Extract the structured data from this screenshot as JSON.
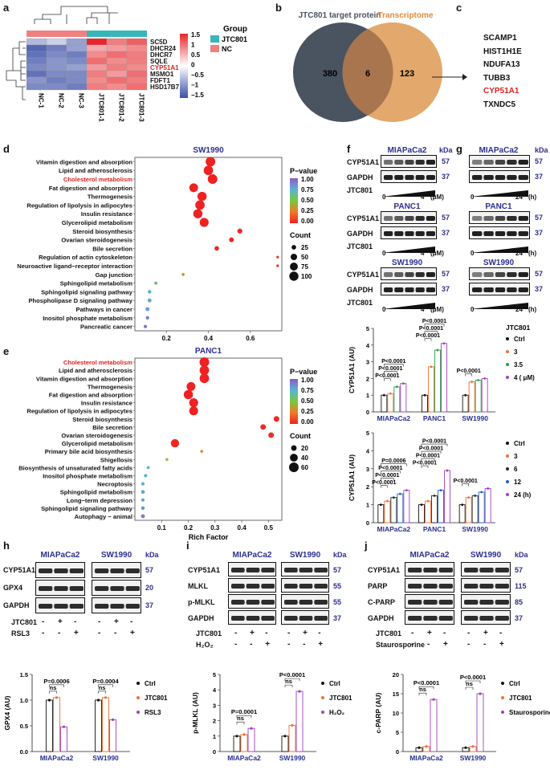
{
  "panels": {
    "a": "a",
    "b": "b",
    "c": "c",
    "d": "d",
    "e": "e",
    "f": "f",
    "g": "g",
    "h": "h",
    "i": "i",
    "j": "j"
  },
  "heatmap": {
    "genes": [
      "SC5D",
      "DHCR24",
      "DHCR7",
      "SQLE",
      "CYP51A1",
      "MSMO1",
      "FDFT1",
      "HSD17B7"
    ],
    "highlight_gene": "CYP51A1",
    "samples": [
      "NC-1",
      "NC-2",
      "NC-3",
      "JTC801-1",
      "JTC801-2",
      "JTC801-3"
    ],
    "scale_ticks": [
      "1.5",
      "1",
      "0.5",
      "0",
      "−0.5",
      "−1",
      "−1.5"
    ],
    "group_title": "Group",
    "group_items": [
      {
        "label": "JTC801",
        "color": "#3ab5b8"
      },
      {
        "label": "NC",
        "color": "#f08080"
      }
    ],
    "values": [
      [
        -0.6,
        -0.4,
        -0.8,
        1.5,
        0.9,
        1.1
      ],
      [
        -1.3,
        -1.1,
        -0.8,
        0.6,
        0.7,
        0.8
      ],
      [
        -1.2,
        -1.0,
        -1.1,
        0.8,
        1.0,
        0.9
      ],
      [
        -1.1,
        -0.9,
        -1.0,
        1.0,
        0.8,
        0.9
      ],
      [
        -1.0,
        -0.9,
        -0.8,
        0.7,
        0.9,
        0.8
      ],
      [
        -1.2,
        -1.0,
        -1.0,
        0.9,
        0.7,
        1.0
      ],
      [
        -0.9,
        -1.1,
        -1.0,
        0.8,
        1.0,
        0.9
      ],
      [
        -1.0,
        -1.0,
        -1.1,
        0.9,
        0.8,
        1.0
      ]
    ]
  },
  "venn": {
    "left_label": "JTC801 target protein",
    "right_label": "Transcriptome",
    "left_only": "380",
    "overlap": "6",
    "right_only": "123"
  },
  "gene_list": {
    "genes": [
      "SCAMP1",
      "HIST1H1E",
      "NDUFA13",
      "TUBB3",
      "CYP51A1",
      "TXNDC5"
    ],
    "highlight": "CYP51A1"
  },
  "chart_data": [
    {
      "type": "scatter",
      "panel": "d",
      "title": "SW1990",
      "xlabel": "",
      "ticks": [
        "0.2",
        "0.4",
        "0.6"
      ],
      "xlim": [
        0.05,
        0.75
      ],
      "categories": [
        "Vitamin digestion and absorption",
        "Lipid and atherosclerosis",
        "Cholesterol metabolism",
        "Fat digestion and absorption",
        "Thermogenesis",
        "Regulation of lipolysis in adipocytes",
        "Insulin resistance",
        "Glycerolipid metabolism",
        "Steroid biosynthesis",
        "Ovarian steroidogenesis",
        "Bile secretion",
        "Regulation of actin cytoskeleton",
        "Neuroactive ligand−receptor interaction",
        "Gap junction",
        "Sphingolipid metabolism",
        "Sphingolipid signaling pathway",
        "Phospholipase D signaling pathway",
        "Pathways in cancer",
        "Inositol phosphate metabolism",
        "Pancreatic cancer"
      ],
      "highlight": "Cholesterol metabolism",
      "x": [
        0.41,
        0.4,
        0.42,
        0.33,
        0.37,
        0.36,
        0.35,
        0.38,
        0.55,
        0.51,
        0.44,
        0.73,
        0.73,
        0.28,
        0.15,
        0.12,
        0.12,
        0.11,
        0.11,
        0.1
      ],
      "count": [
        110,
        105,
        110,
        90,
        100,
        105,
        100,
        95,
        30,
        28,
        25,
        8,
        8,
        10,
        12,
        15,
        18,
        20,
        14,
        12
      ],
      "pvalue": [
        0.0,
        0.0,
        0.0,
        0.0,
        0.0,
        0.0,
        0.0,
        0.0,
        0.02,
        0.02,
        0.02,
        0.05,
        0.05,
        0.3,
        0.6,
        0.75,
        0.8,
        0.8,
        0.9,
        0.95
      ],
      "legend_pvalue_title": "P−value",
      "legend_pvalue_ticks": [
        "1.00",
        "0.75",
        "0.50",
        "0.25",
        "0.00"
      ],
      "legend_count_title": "Count",
      "legend_count_ticks": [
        "25",
        "50",
        "75",
        "100"
      ]
    },
    {
      "type": "scatter",
      "panel": "e",
      "title": "PANC1",
      "xlabel": "Rich Factor",
      "ticks": [
        "0.1",
        "0.2",
        "0.3",
        "0.4",
        "0.5"
      ],
      "xlim": [
        0.0,
        0.55
      ],
      "categories": [
        "Cholesterol metabolism",
        "Lipid and atherosclerosis",
        "Vitamin digestion and absorption",
        "Thermogenesis",
        "Fat digestion and absorption",
        "Insulin resistance",
        "Regulation of lipolysis in adipocytes",
        "Steroid biosynthesis",
        "Bile secretion",
        "Ovarian steroidogenesis",
        "Glycerolipid metabolism",
        "Primary bile acid biosynthesis",
        "Shigellosis",
        "Biosynthesis of unsaturated fatty acids",
        "Inositol phosphate metabolism",
        "Necroptosis",
        "Sphingolipid metabolism",
        "Long−term depression",
        "Sphingolipid signaling pathway",
        "Autophagy − animal"
      ],
      "highlight": "Cholesterol metabolism",
      "x": [
        0.26,
        0.26,
        0.26,
        0.21,
        0.2,
        0.22,
        0.22,
        0.53,
        0.48,
        0.51,
        0.15,
        0.25,
        0.12,
        0.05,
        0.04,
        0.03,
        0.03,
        0.03,
        0.03,
        0.03
      ],
      "count": [
        60,
        58,
        58,
        50,
        55,
        52,
        52,
        20,
        20,
        20,
        45,
        5,
        5,
        6,
        7,
        8,
        9,
        7,
        8,
        10
      ],
      "pvalue": [
        0.0,
        0.0,
        0.0,
        0.0,
        0.0,
        0.0,
        0.0,
        0.02,
        0.03,
        0.03,
        0.02,
        0.25,
        0.45,
        0.65,
        0.75,
        0.75,
        0.8,
        0.8,
        0.85,
        0.9
      ],
      "legend_pvalue_title": "P−value",
      "legend_pvalue_ticks": [
        "1.00",
        "0.75",
        "0.50",
        "0.25",
        "0.00"
      ],
      "legend_count_title": "Count",
      "legend_count_ticks": [
        "20",
        "40",
        "60"
      ]
    },
    {
      "type": "bar",
      "panel": "f-upper",
      "ylabel": "CYP51A1 (AU)",
      "ylim": [
        0,
        5
      ],
      "ticks": [
        "0",
        "1",
        "2",
        "3",
        "4",
        "5"
      ],
      "categories": [
        "MIAPaCa2",
        "PANC1",
        "SW1990"
      ],
      "legend_title": "JTC801",
      "series": [
        {
          "name": "Ctrl",
          "values": [
            1.0,
            1.0,
            1.0
          ],
          "color": "#111111"
        },
        {
          "name": "3",
          "values": [
            1.1,
            2.7,
            1.8
          ],
          "color": "#f07030"
        },
        {
          "name": "3.5",
          "values": [
            1.5,
            3.7,
            1.9
          ],
          "color": "#2a9d4a"
        },
        {
          "name": "4 ( μM)",
          "values": [
            1.7,
            4.1,
            2.0
          ],
          "color": "#a040c0"
        }
      ],
      "pvalues": [
        "P<0.0001",
        "P<0.0001",
        "P<0.0001",
        "P<0.0001",
        "P<0.0001",
        "P<0.0001",
        "P<0.0001"
      ]
    },
    {
      "type": "bar",
      "panel": "f-lower",
      "ylabel": "CYP51A1 (AU)",
      "ylim": [
        0,
        5
      ],
      "ticks": [
        "0",
        "1",
        "2",
        "3",
        "4",
        "5"
      ],
      "categories": [
        "MIAPaCa2",
        "PANC1",
        "SW1990"
      ],
      "legend_title": "",
      "series": [
        {
          "name": "Ctrl",
          "values": [
            1.0,
            1.0,
            1.0
          ],
          "color": "#111111"
        },
        {
          "name": "3",
          "values": [
            1.2,
            1.2,
            1.4
          ],
          "color": "#f07030"
        },
        {
          "name": "6",
          "values": [
            1.4,
            1.5,
            1.5
          ],
          "color": "#2a2a2a"
        },
        {
          "name": "12",
          "values": [
            1.6,
            1.8,
            1.7
          ],
          "color": "#2060c0"
        },
        {
          "name": "24 (h)",
          "values": [
            1.8,
            2.9,
            1.9
          ],
          "color": "#a040c0"
        }
      ],
      "pvalues": [
        "P<0.0001",
        "P<0.0001",
        "P<0.0001",
        "P=0.0006",
        "P<0.0001",
        "P<0.0001",
        "P<0.0001",
        "P<0.0001",
        "P<0.0001"
      ]
    },
    {
      "type": "bar",
      "panel": "h",
      "ylabel": "GPX4 (AU)",
      "ylim": [
        0,
        1.5
      ],
      "ticks": [
        "0.0",
        "0.5",
        "1.0",
        "1.5"
      ],
      "categories": [
        "MIAPaCa2",
        "SW1990"
      ],
      "series": [
        {
          "name": "Ctrl",
          "values": [
            1.0,
            1.0
          ],
          "color": "#111111"
        },
        {
          "name": "JTC801",
          "values": [
            1.05,
            1.05
          ],
          "color": "#f07030"
        },
        {
          "name": "RSL3",
          "values": [
            0.48,
            0.62
          ],
          "color": "#a040c0"
        }
      ],
      "pvalues": [
        "P=0.0006",
        "P=0.0004"
      ],
      "ns": [
        "ns",
        "ns"
      ]
    },
    {
      "type": "bar",
      "panel": "i",
      "ylabel": "p-MLKL (AU)",
      "ylim": [
        0,
        5
      ],
      "ticks": [
        "0",
        "1",
        "2",
        "3",
        "4",
        "5"
      ],
      "categories": [
        "MIAPaCa2",
        "SW1990"
      ],
      "series": [
        {
          "name": "Ctrl",
          "values": [
            1.0,
            1.0
          ],
          "color": "#111111"
        },
        {
          "name": "JTC801",
          "values": [
            1.1,
            1.7
          ],
          "color": "#f07030"
        },
        {
          "name": "H₂O₂",
          "values": [
            1.5,
            3.9
          ],
          "color": "#a040c0"
        }
      ],
      "pvalues": [
        "P=0.0001",
        "P<0.0001"
      ],
      "ns": [
        "ns",
        "ns"
      ]
    },
    {
      "type": "bar",
      "panel": "j",
      "ylabel": "c-PARP (AU)",
      "ylim": [
        0,
        20
      ],
      "ticks": [
        "0",
        "5",
        "10",
        "15",
        "20"
      ],
      "categories": [
        "MIAPaCa2",
        "SW1990"
      ],
      "series": [
        {
          "name": "Ctrl",
          "values": [
            1.0,
            1.0
          ],
          "color": "#111111"
        },
        {
          "name": "JTC801",
          "values": [
            1.3,
            1.3
          ],
          "color": "#f07030"
        },
        {
          "name": "Staurosporine",
          "values": [
            13.5,
            15.0
          ],
          "color": "#a040c0"
        }
      ],
      "pvalues": [
        "P<0.0001",
        "P<0.0001"
      ],
      "ns": [
        "ns",
        "ns"
      ]
    }
  ],
  "blots": {
    "f": {
      "groups": [
        {
          "title": "MIAPaCa2",
          "rows": [
            "CYP51A1",
            "GAPDH"
          ],
          "kda": [
            "57",
            "37"
          ],
          "treatment": "JTC801",
          "x_start": "0",
          "x_end": "4",
          "unit": "(μM)"
        },
        {
          "title": "PANC1",
          "rows": [
            "CYP51A1",
            "GAPDH"
          ],
          "kda": [
            "57",
            "37"
          ],
          "treatment": "JTC801",
          "x_start": "0",
          "x_end": "4",
          "unit": "(μM)"
        },
        {
          "title": "SW1990",
          "rows": [
            "CYP51A1",
            "GAPDH"
          ],
          "kda": [
            "57",
            "37"
          ],
          "treatment": "JTC801",
          "x_start": "0",
          "x_end": "4",
          "unit": "(μM)"
        }
      ],
      "kda_header": "kDa"
    },
    "g": {
      "groups": [
        {
          "title": "MIAPaCa2",
          "kda": [
            "57",
            "37"
          ],
          "x_start": "0",
          "x_end": "24",
          "unit": "(h)"
        },
        {
          "title": "PANC1",
          "kda": [
            "57",
            "37"
          ],
          "x_start": "0",
          "x_end": "24",
          "unit": "(h)"
        },
        {
          "title": "SW1990",
          "kda": [
            "57",
            "37"
          ],
          "x_start": "0",
          "x_end": "24",
          "unit": "(h)"
        }
      ],
      "kda_header": "kDa"
    },
    "h": {
      "titles": [
        "MIAPaCa2",
        "SW1990"
      ],
      "rows": [
        "CYP51A1",
        "GPX4",
        "GAPDH"
      ],
      "kda": [
        "57",
        "20",
        "37"
      ],
      "kda_header": "kDa",
      "treatments": [
        {
          "name": "JTC801",
          "signs": [
            "-",
            "+",
            "-"
          ]
        },
        {
          "name": "RSL3",
          "signs": [
            "-",
            "-",
            "+"
          ]
        }
      ]
    },
    "i": {
      "titles": [
        "MIAPaCa2",
        "SW1990"
      ],
      "rows": [
        "CYP51A1",
        "MLKL",
        "p-MLKL",
        "GAPDH"
      ],
      "kda": [
        "57",
        "55",
        "55",
        "37"
      ],
      "kda_header": "kDa",
      "treatments": [
        {
          "name": "JTC801",
          "signs": [
            "-",
            "+",
            "-"
          ]
        },
        {
          "name": "H₂O₂",
          "signs": [
            "-",
            "-",
            "+"
          ]
        }
      ]
    },
    "j": {
      "titles": [
        "MIAPaCa2",
        "SW1990"
      ],
      "rows": [
        "CYP51A1",
        "PARP",
        "C-PARP",
        "GAPDH"
      ],
      "kda": [
        "57",
        "115",
        "85",
        "37"
      ],
      "kda_header": "kDa",
      "treatments": [
        {
          "name": "JTC801",
          "signs": [
            "-",
            "+",
            "-"
          ]
        },
        {
          "name": "Staurosporine",
          "signs": [
            "-",
            "-",
            "+"
          ]
        }
      ]
    }
  }
}
